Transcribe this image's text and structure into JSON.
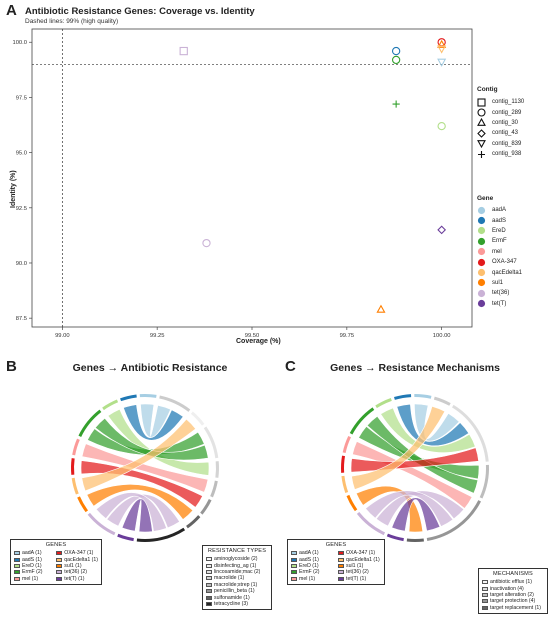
{
  "panels": {
    "a_letter": "A",
    "b_letter": "B",
    "c_letter": "C"
  },
  "chart_data": [
    {
      "type": "scatter",
      "title": "Antibiotic Resistance Genes: Coverage vs. Identity",
      "subtitle": "Dashed lines: 99% (high quality)",
      "xlabel": "Coverage (%)",
      "ylabel": "Identity (%)",
      "xlim": [
        98.92,
        100.08
      ],
      "ylim": [
        87.1,
        100.6
      ],
      "xticks": [
        "99.00",
        "99.25",
        "99.50",
        "99.75",
        "100.00"
      ],
      "xtick_values": [
        99.0,
        99.25,
        99.5,
        99.75,
        100.0
      ],
      "yticks": [
        "87.5",
        "90.0",
        "92.5",
        "95.0",
        "97.5",
        "100.0"
      ],
      "ytick_values": [
        87.5,
        90.0,
        92.5,
        95.0,
        97.5,
        100.0
      ],
      "reference_lines": {
        "x": 99.0,
        "y": 99.0
      },
      "grid": false,
      "points": [
        {
          "gene": "tet(36)",
          "contig": "contig_1130",
          "x": 99.32,
          "y": 99.6
        },
        {
          "gene": "tet(36)",
          "contig": "contig_289",
          "x": 99.38,
          "y": 90.9
        },
        {
          "gene": "aadS",
          "contig": "contig_289",
          "x": 99.88,
          "y": 99.6
        },
        {
          "gene": "ErmF",
          "contig": "contig_289",
          "x": 99.88,
          "y": 99.2
        },
        {
          "gene": "ErmF",
          "contig": "contig_938",
          "x": 99.88,
          "y": 97.2
        },
        {
          "gene": "sul1",
          "contig": "contig_30",
          "x": 99.84,
          "y": 87.9
        },
        {
          "gene": "OXA-347",
          "contig": "contig_289",
          "x": 100.0,
          "y": 100.0
        },
        {
          "gene": "sul1",
          "contig": "contig_30",
          "x": 100.0,
          "y": 99.9
        },
        {
          "gene": "qacEdelta1",
          "contig": "contig_839",
          "x": 100.0,
          "y": 99.7
        },
        {
          "gene": "aadA",
          "contig": "contig_839",
          "x": 100.0,
          "y": 99.1
        },
        {
          "gene": "EreD",
          "contig": "contig_289",
          "x": 100.0,
          "y": 96.2
        },
        {
          "gene": "tet(T)",
          "contig": "contig_43",
          "x": 100.0,
          "y": 91.5
        }
      ],
      "contig_legend": {
        "title": "Contig",
        "items": [
          {
            "label": "contig_1130",
            "shape": "square"
          },
          {
            "label": "contig_289",
            "shape": "circle"
          },
          {
            "label": "contig_30",
            "shape": "triangle"
          },
          {
            "label": "contig_43",
            "shape": "diamond"
          },
          {
            "label": "contig_839",
            "shape": "triangle-down"
          },
          {
            "label": "contig_938",
            "shape": "plus"
          }
        ]
      },
      "gene_legend": {
        "title": "Gene",
        "items": [
          {
            "label": "aadA",
            "color": "#a6cee3"
          },
          {
            "label": "aadS",
            "color": "#1f78b4"
          },
          {
            "label": "EreD",
            "color": "#b2df8a"
          },
          {
            "label": "ErmF",
            "color": "#33a02c"
          },
          {
            "label": "mel",
            "color": "#fb9a99"
          },
          {
            "label": "OXA-347",
            "color": "#e31a1c"
          },
          {
            "label": "qacEdelta1",
            "color": "#fdbf6f"
          },
          {
            "label": "sul1",
            "color": "#ff7f00"
          },
          {
            "label": "tet(36)",
            "color": "#cab2d6"
          },
          {
            "label": "tet(T)",
            "color": "#6a3d9a"
          }
        ]
      }
    },
    {
      "type": "chord",
      "title": "Genes → Antibiotic Resistance",
      "genes_box": {
        "title": "GENES",
        "items": [
          {
            "label": "aadA (1)",
            "color": "#a6cee3"
          },
          {
            "label": "OXA-347 (1)",
            "color": "#e31a1c"
          },
          {
            "label": "aadS (1)",
            "color": "#1f78b4"
          },
          {
            "label": "qacEdelta1 (1)",
            "color": "#fdbf6f"
          },
          {
            "label": "EreD (1)",
            "color": "#b2df8a"
          },
          {
            "label": "sul1 (1)",
            "color": "#ff7f00"
          },
          {
            "label": "ErmF (2)",
            "color": "#33a02c"
          },
          {
            "label": "tet(36) (2)",
            "color": "#cab2d6"
          },
          {
            "label": "mel (1)",
            "color": "#fb9a99"
          },
          {
            "label": "tet(T) (1)",
            "color": "#6a3d9a"
          }
        ]
      },
      "targets_box": {
        "title": "RESISTANCE TYPES",
        "items": [
          {
            "label": "aminoglycoside (2)",
            "color": "#f7f7f7"
          },
          {
            "label": "disinfecting_ag (1)",
            "color": "#efefef"
          },
          {
            "label": "lincosamide;mac (2)",
            "color": "#e3e3e3"
          },
          {
            "label": "macrolide (1)",
            "color": "#d4d4d4"
          },
          {
            "label": "macrolide;strep (1)",
            "color": "#bdbdbd"
          },
          {
            "label": "penicillin_beta (1)",
            "color": "#969696"
          },
          {
            "label": "sulfonamide (1)",
            "color": "#636363"
          },
          {
            "label": "tetracycline (3)",
            "color": "#252525"
          }
        ]
      },
      "links": [
        {
          "gene": "aadA",
          "target": "aminoglycoside"
        },
        {
          "gene": "aadS",
          "target": "aminoglycoside"
        },
        {
          "gene": "EreD",
          "target": "macrolide"
        },
        {
          "gene": "ErmF",
          "target": "lincosamide;mac"
        },
        {
          "gene": "ErmF",
          "target": "lincosamide;mac"
        },
        {
          "gene": "mel",
          "target": "macrolide;strep"
        },
        {
          "gene": "OXA-347",
          "target": "penicillin_beta"
        },
        {
          "gene": "qacEdelta1",
          "target": "disinfecting_ag"
        },
        {
          "gene": "sul1",
          "target": "sulfonamide"
        },
        {
          "gene": "tet(36)",
          "target": "tetracycline"
        },
        {
          "gene": "tet(36)",
          "target": "tetracycline"
        },
        {
          "gene": "tet(T)",
          "target": "tetracycline"
        }
      ]
    },
    {
      "type": "chord",
      "title": "Genes → Resistance Mechanisms",
      "genes_box": {
        "title": "GENES",
        "items": [
          {
            "label": "aadA (1)",
            "color": "#a6cee3"
          },
          {
            "label": "OXA-347 (1)",
            "color": "#e31a1c"
          },
          {
            "label": "aadS (1)",
            "color": "#1f78b4"
          },
          {
            "label": "qacEdelta1 (1)",
            "color": "#fdbf6f"
          },
          {
            "label": "EreD (1)",
            "color": "#b2df8a"
          },
          {
            "label": "sul1 (1)",
            "color": "#ff7f00"
          },
          {
            "label": "ErmF (2)",
            "color": "#33a02c"
          },
          {
            "label": "tet(36) (2)",
            "color": "#cab2d6"
          },
          {
            "label": "mel (1)",
            "color": "#fb9a99"
          },
          {
            "label": "tet(T) (1)",
            "color": "#6a3d9a"
          }
        ]
      },
      "targets_box": {
        "title": "MECHANISMS",
        "items": [
          {
            "label": "antibiotic efflux (1)",
            "color": "#f5f5f5"
          },
          {
            "label": "inactivation (4)",
            "color": "#dddddd"
          },
          {
            "label": "target alteration (2)",
            "color": "#bdbdbd"
          },
          {
            "label": "target protection (4)",
            "color": "#969696"
          },
          {
            "label": "target replacement (1)",
            "color": "#636363"
          }
        ]
      },
      "links": [
        {
          "gene": "aadA",
          "target": "inactivation"
        },
        {
          "gene": "aadS",
          "target": "inactivation"
        },
        {
          "gene": "EreD",
          "target": "inactivation"
        },
        {
          "gene": "ErmF",
          "target": "target alteration"
        },
        {
          "gene": "ErmF",
          "target": "target alteration"
        },
        {
          "gene": "mel",
          "target": "target protection"
        },
        {
          "gene": "OXA-347",
          "target": "inactivation"
        },
        {
          "gene": "qacEdelta1",
          "target": "antibiotic efflux"
        },
        {
          "gene": "sul1",
          "target": "target replacement"
        },
        {
          "gene": "tet(36)",
          "target": "target protection"
        },
        {
          "gene": "tet(36)",
          "target": "target protection"
        },
        {
          "gene": "tet(T)",
          "target": "target protection"
        }
      ]
    }
  ]
}
